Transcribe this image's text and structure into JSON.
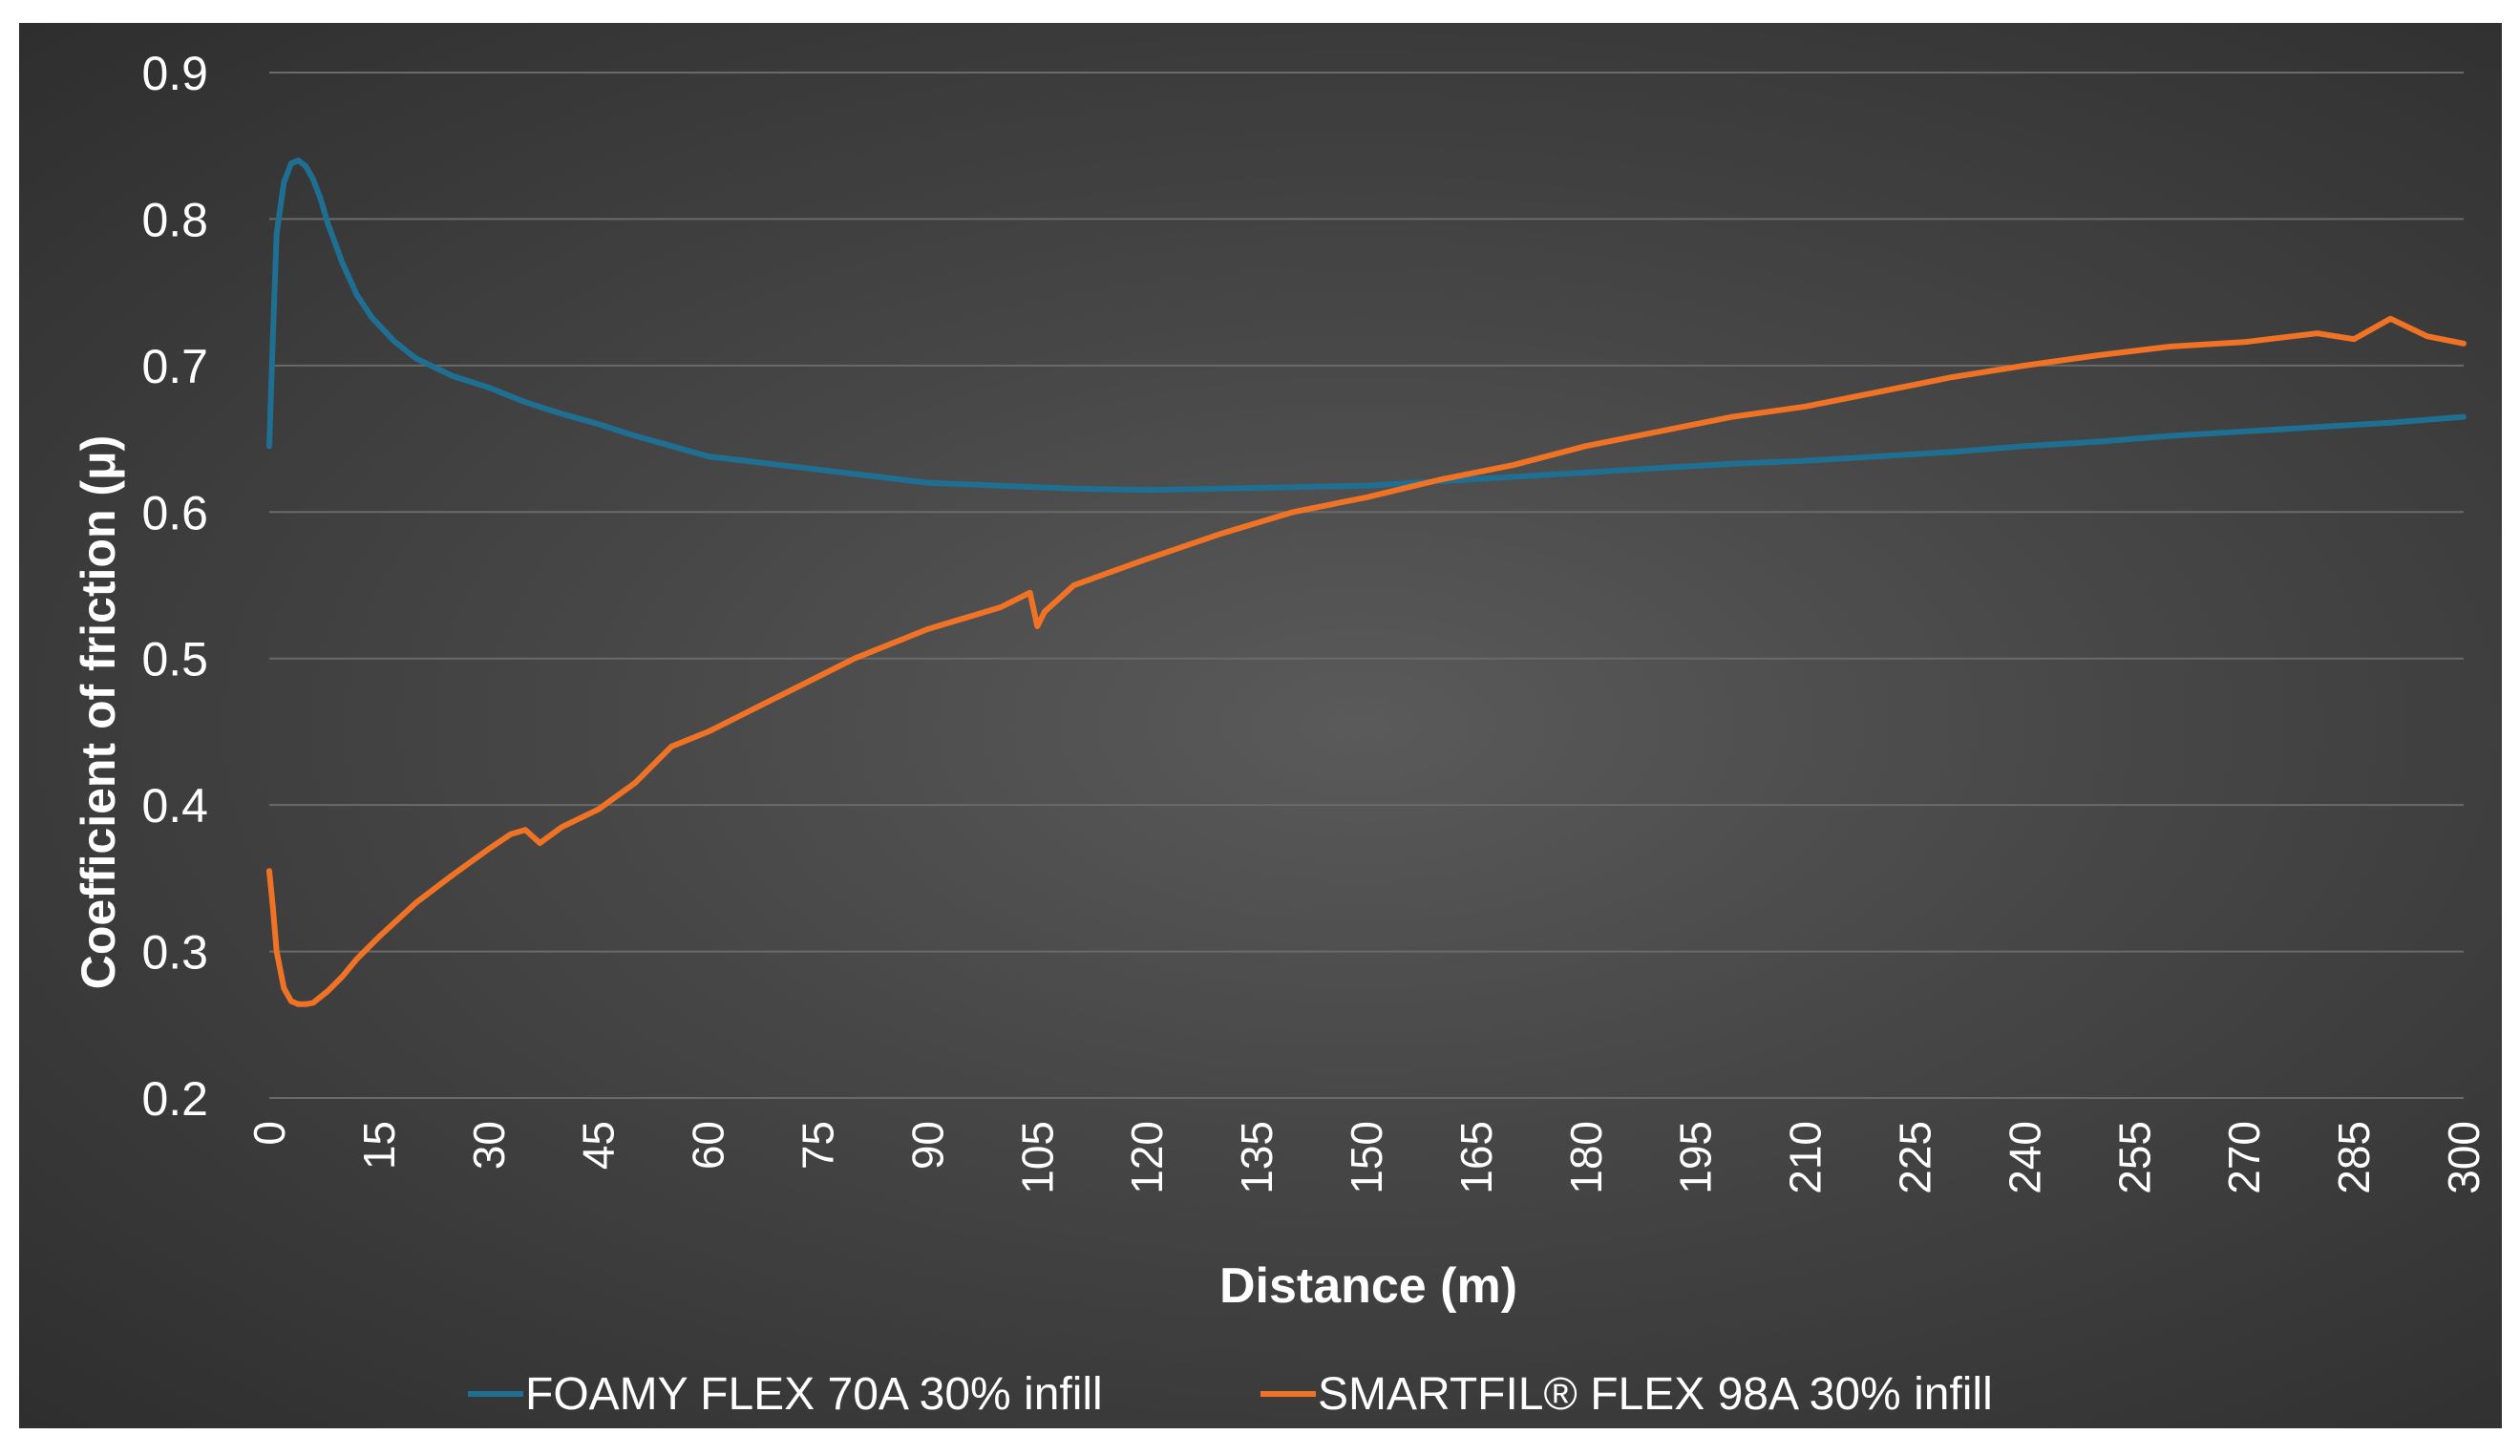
{
  "chart_data": {
    "type": "line",
    "title": "",
    "xlabel": "Distance (m)",
    "ylabel": "Coefficient of friction (μ)",
    "xlim": [
      0,
      300
    ],
    "ylim": [
      0.2,
      0.9
    ],
    "x_ticks": [
      "0",
      "15",
      "30",
      "45",
      "60",
      "75",
      "90",
      "105",
      "120",
      "135",
      "150",
      "165",
      "180",
      "195",
      "210",
      "225",
      "240",
      "255",
      "270",
      "285",
      "300"
    ],
    "y_ticks": [
      "0.2",
      "0.3",
      "0.4",
      "0.5",
      "0.6",
      "0.7",
      "0.8",
      "0.9"
    ],
    "grid": "horizontal",
    "legend_position": "bottom",
    "series": [
      {
        "name": "FOAMY FLEX 70A 30% infill",
        "color": "#1f6f93",
        "x": [
          0,
          0.5,
          1,
          2,
          3,
          4,
          5,
          6,
          7,
          8,
          10,
          12,
          14,
          17,
          20,
          25,
          30,
          35,
          40,
          45,
          50,
          55,
          60,
          70,
          80,
          90,
          100,
          110,
          120,
          130,
          140,
          150,
          160,
          170,
          180,
          190,
          200,
          210,
          220,
          230,
          240,
          250,
          260,
          270,
          280,
          290,
          300
        ],
        "y": [
          0.645,
          0.72,
          0.79,
          0.825,
          0.838,
          0.84,
          0.836,
          0.827,
          0.814,
          0.797,
          0.77,
          0.748,
          0.733,
          0.717,
          0.705,
          0.693,
          0.685,
          0.675,
          0.667,
          0.66,
          0.652,
          0.645,
          0.638,
          0.632,
          0.626,
          0.62,
          0.618,
          0.616,
          0.615,
          0.616,
          0.617,
          0.618,
          0.621,
          0.624,
          0.627,
          0.63,
          0.633,
          0.635,
          0.638,
          0.641,
          0.645,
          0.648,
          0.652,
          0.655,
          0.658,
          0.661,
          0.665
        ]
      },
      {
        "name": "SMARTFIL® FLEX 98A  30% infill",
        "color": "#f07225",
        "x": [
          0,
          0.5,
          1,
          2,
          3,
          4,
          5,
          6,
          8,
          10,
          12,
          15,
          20,
          25,
          30,
          33,
          35,
          37,
          40,
          45,
          50,
          55,
          60,
          70,
          80,
          90,
          100,
          104,
          105,
          106,
          110,
          120,
          130,
          140,
          150,
          160,
          170,
          180,
          190,
          200,
          210,
          220,
          230,
          240,
          250,
          260,
          270,
          280,
          285,
          290,
          295,
          300
        ],
        "y": [
          0.355,
          0.33,
          0.3,
          0.275,
          0.266,
          0.264,
          0.264,
          0.265,
          0.273,
          0.283,
          0.295,
          0.31,
          0.333,
          0.352,
          0.37,
          0.38,
          0.383,
          0.374,
          0.385,
          0.397,
          0.415,
          0.44,
          0.45,
          0.475,
          0.5,
          0.52,
          0.535,
          0.545,
          0.522,
          0.532,
          0.55,
          0.568,
          0.585,
          0.6,
          0.61,
          0.622,
          0.632,
          0.645,
          0.655,
          0.665,
          0.672,
          0.682,
          0.692,
          0.7,
          0.707,
          0.713,
          0.716,
          0.722,
          0.718,
          0.732,
          0.72,
          0.715
        ]
      }
    ]
  }
}
